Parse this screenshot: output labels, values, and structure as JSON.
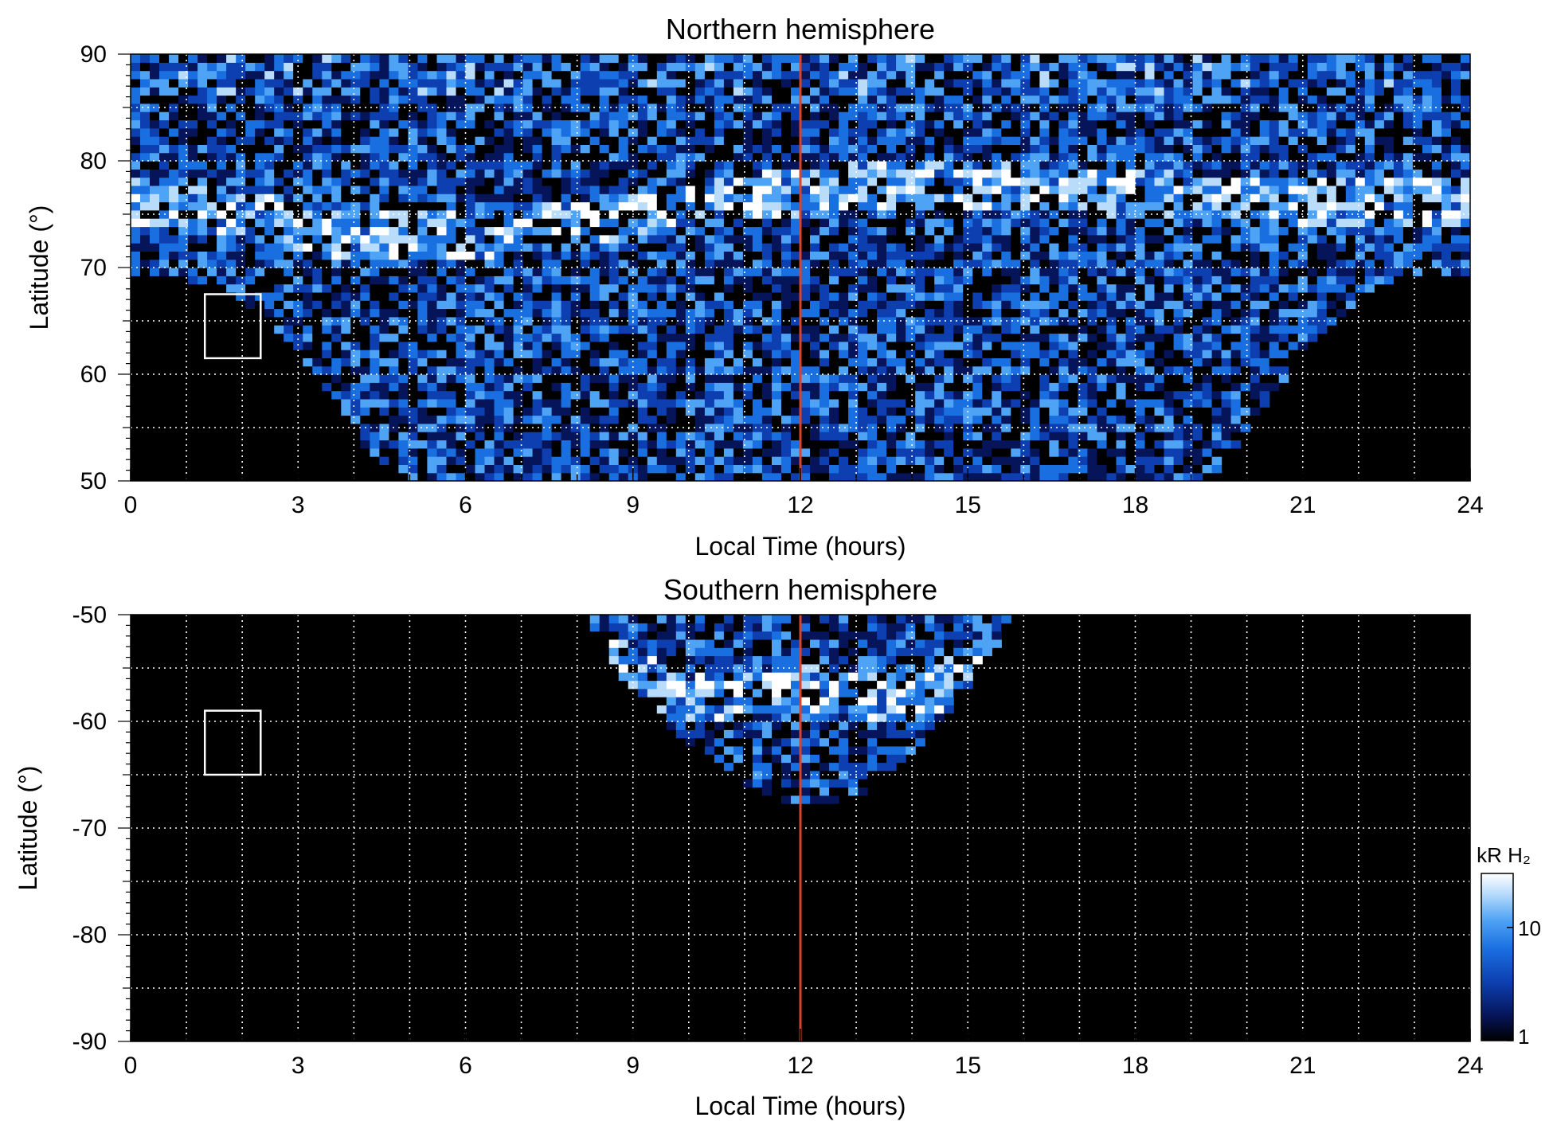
{
  "colors": {
    "background": "#000000",
    "grid": "#ffffff",
    "noon_line": "#d9452a",
    "box": "#ffffff",
    "colormap": [
      "#000000",
      "#06155a",
      "#0d3fb0",
      "#1a6fe0",
      "#4fa3f5",
      "#b9dcfb",
      "#ffffff"
    ]
  },
  "chart_data": [
    {
      "type": "heatmap",
      "title": "Northern hemisphere",
      "xlabel": "Local Time (hours)",
      "ylabel": "Latitude (°)",
      "xlim": [
        0,
        24
      ],
      "ylim": [
        50,
        90
      ],
      "xticks": [
        "0",
        "3",
        "6",
        "9",
        "12",
        "15",
        "18",
        "21",
        "24"
      ],
      "yticks": [
        "50",
        "60",
        "70",
        "80",
        "90"
      ],
      "grid": true,
      "reference_line_x": 12,
      "box": {
        "x": [
          1.33,
          2.33
        ],
        "y": [
          61.5,
          67.5
        ]
      },
      "coverage_boundary_lat": [
        [
          0,
          69
        ],
        [
          1,
          69
        ],
        [
          2,
          67
        ],
        [
          3,
          62
        ],
        [
          4,
          55
        ],
        [
          4.5,
          51
        ],
        [
          5,
          50
        ],
        [
          19,
          50
        ],
        [
          19.5,
          51
        ],
        [
          20,
          55
        ],
        [
          21,
          62
        ],
        [
          22,
          67
        ],
        [
          23,
          69
        ],
        [
          24,
          69
        ]
      ],
      "bright_oval_lat": [
        [
          0,
          76
        ],
        [
          2,
          75
        ],
        [
          4,
          73
        ],
        [
          6,
          73
        ],
        [
          8,
          74
        ],
        [
          10,
          76
        ],
        [
          14,
          78
        ],
        [
          18,
          77
        ],
        [
          21,
          76
        ],
        [
          24,
          76
        ]
      ]
    },
    {
      "type": "heatmap",
      "title": "Southern hemisphere",
      "xlabel": "Local Time (hours)",
      "ylabel": "Latitude (°)",
      "xlim": [
        0,
        24
      ],
      "ylim": [
        -90,
        -50
      ],
      "xticks": [
        "0",
        "3",
        "6",
        "9",
        "12",
        "15",
        "18",
        "21",
        "24"
      ],
      "yticks": [
        "-50",
        "-60",
        "-70",
        "-80",
        "-90"
      ],
      "grid": true,
      "reference_line_x": 12,
      "box": {
        "x": [
          1.33,
          2.33
        ],
        "y": [
          -65,
          -59
        ]
      },
      "coverage_boundary_lat": [
        [
          8.1,
          -50
        ],
        [
          8.5,
          -54
        ],
        [
          9,
          -57
        ],
        [
          10,
          -62
        ],
        [
          11,
          -66
        ],
        [
          12,
          -68
        ],
        [
          13,
          -67
        ],
        [
          14,
          -63
        ],
        [
          15,
          -57
        ],
        [
          15.6,
          -52
        ],
        [
          15.9,
          -50
        ]
      ],
      "bright_oval_lat": [
        [
          8.5,
          -54
        ],
        [
          10,
          -58
        ],
        [
          12,
          -57
        ],
        [
          14,
          -58
        ],
        [
          15.5,
          -54
        ]
      ]
    }
  ],
  "colorbar": {
    "label": "kR H₂",
    "scale": "log",
    "range": [
      1,
      30
    ],
    "ticks": [
      "1",
      "10"
    ]
  }
}
